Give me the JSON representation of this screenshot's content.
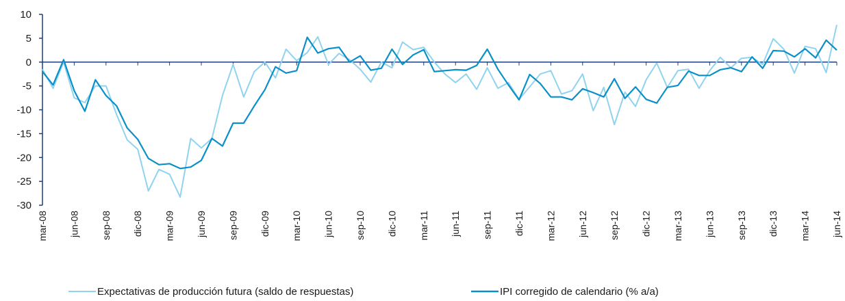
{
  "chart_data": {
    "type": "line",
    "categories": [
      "mar-08",
      null,
      null,
      "jun-08",
      null,
      null,
      "sep-08",
      null,
      null,
      "dic-08",
      null,
      null,
      "mar-09",
      null,
      null,
      "jun-09",
      null,
      null,
      "sep-09",
      null,
      null,
      "dic-09",
      null,
      null,
      "mar-10",
      null,
      null,
      "jun-10",
      null,
      null,
      "sep-10",
      null,
      null,
      "dic-10",
      null,
      null,
      "mar-11",
      null,
      null,
      "jun-11",
      null,
      null,
      "sep-11",
      null,
      null,
      "dic-11",
      null,
      null,
      "mar-12",
      null,
      null,
      "jun-12",
      null,
      null,
      "sep-12",
      null,
      null,
      "dic-12",
      null,
      null,
      "mar-13",
      null,
      null,
      "jun-13",
      null,
      null,
      "sep-13",
      null,
      null,
      "dic-13",
      null,
      null,
      "mar-14",
      null,
      null,
      "jun-14"
    ],
    "series": [
      {
        "name": "Expectativas de producción futura (saldo de respuestas)",
        "color": "#8fd3ee",
        "values": [
          -1.5,
          -5.5,
          0,
          -7.5,
          -8.5,
          -5,
          -5,
          -11,
          -16.3,
          -18.3,
          -27,
          -22.5,
          -23.5,
          -28.3,
          -16,
          -18,
          -16,
          -7,
          -0.5,
          -7.3,
          -2,
          0,
          -3.3,
          2.7,
          0.3,
          2,
          5.3,
          -0.5,
          1.8,
          0.5,
          -1.5,
          -4.2,
          0,
          -1.2,
          4.2,
          2.6,
          3.1,
          0,
          -2.5,
          -4.3,
          -2.5,
          -5.7,
          -1.2,
          -5.5,
          -4.3,
          -7.8,
          -5.2,
          -2.5,
          -1.8,
          -6.7,
          -6,
          -2.5,
          -10.2,
          -5.3,
          -13.1,
          -6.3,
          -9.3,
          -3.7,
          -0.2,
          -5.3,
          -1.8,
          -1.5,
          -5.5,
          -1.8,
          1,
          -1.2,
          0.8,
          1,
          -0.5,
          4.9,
          2.7,
          -2.3,
          3.3,
          2.8,
          -2.2,
          7.8
        ]
      },
      {
        "name": "IPI corregido de calendario (% a/a)",
        "color": "#0a8fc9",
        "values": [
          -2,
          -4.8,
          0.5,
          -6,
          -10.3,
          -3.7,
          -7,
          -9.2,
          -13.8,
          -16.2,
          -20.2,
          -21.5,
          -21.3,
          -22.3,
          -22,
          -20.6,
          -16,
          -17.6,
          -12.8,
          -12.8,
          -9.2,
          -5.8,
          -1,
          -2.3,
          -1.8,
          5.2,
          1.9,
          2.8,
          3.1,
          0,
          1.3,
          -1.7,
          -1.3,
          2.7,
          -0.5,
          1.5,
          2.6,
          -2,
          -1.8,
          -1.6,
          -1.7,
          -0.7,
          2.7,
          -1.5,
          -4.8,
          -7.9,
          -2.6,
          -4.5,
          -7.3,
          -7.3,
          -7.9,
          -5.6,
          -6.4,
          -7.3,
          -3.5,
          -7.6,
          -5.2,
          -7.8,
          -8.6,
          -5.3,
          -4.9,
          -1.9,
          -2.8,
          -2.8,
          -1.6,
          -1.2,
          -2,
          1.1,
          -1.3,
          2.4,
          2.3,
          1.1,
          2.8,
          0.9,
          4.6,
          2.5
        ]
      }
    ],
    "ylim": [
      -30,
      10
    ],
    "yticks": [
      -30,
      -25,
      -20,
      -15,
      -10,
      -5,
      0,
      5,
      10
    ]
  }
}
